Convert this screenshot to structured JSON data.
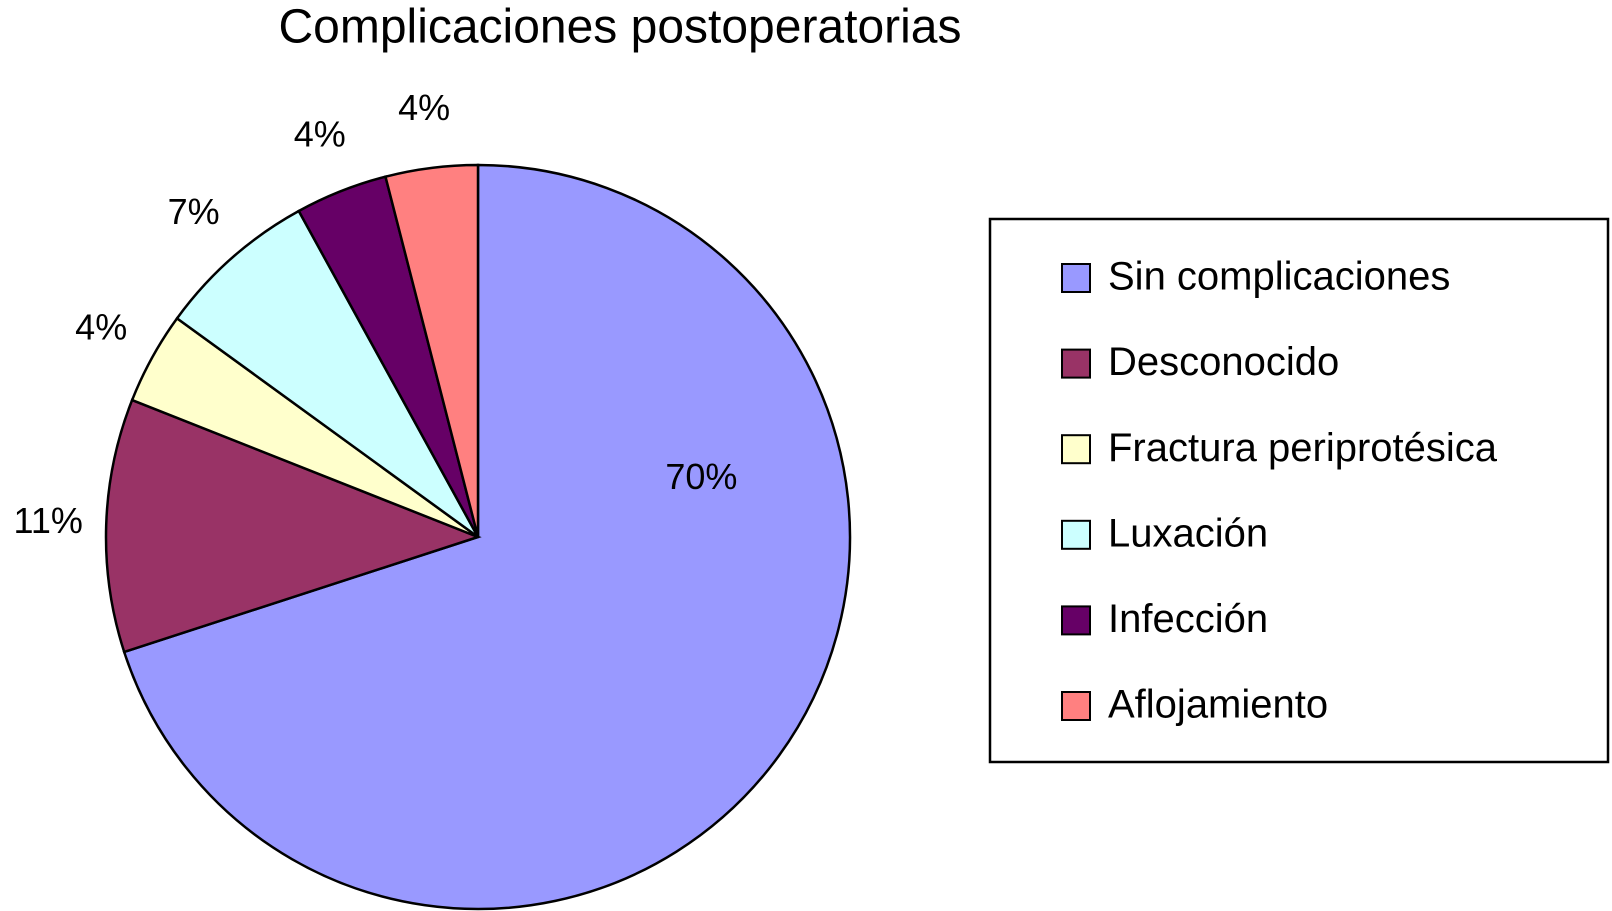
{
  "chart_data": {
    "type": "pie",
    "title": "Complicaciones postoperatorias",
    "categories": [
      "Sin complicaciones",
      "Desconocido",
      "Fractura periprotésica",
      "Luxación",
      "Infección",
      "Aflojamiento"
    ],
    "values": [
      70,
      11,
      4,
      7,
      4,
      4
    ],
    "value_labels": [
      "70%",
      "11%",
      "4%",
      "7%",
      "4%",
      "4%"
    ],
    "colors": [
      "#9999ff",
      "#993366",
      "#ffffcc",
      "#ccffff",
      "#660066",
      "#ff8080"
    ],
    "legend": "right"
  }
}
